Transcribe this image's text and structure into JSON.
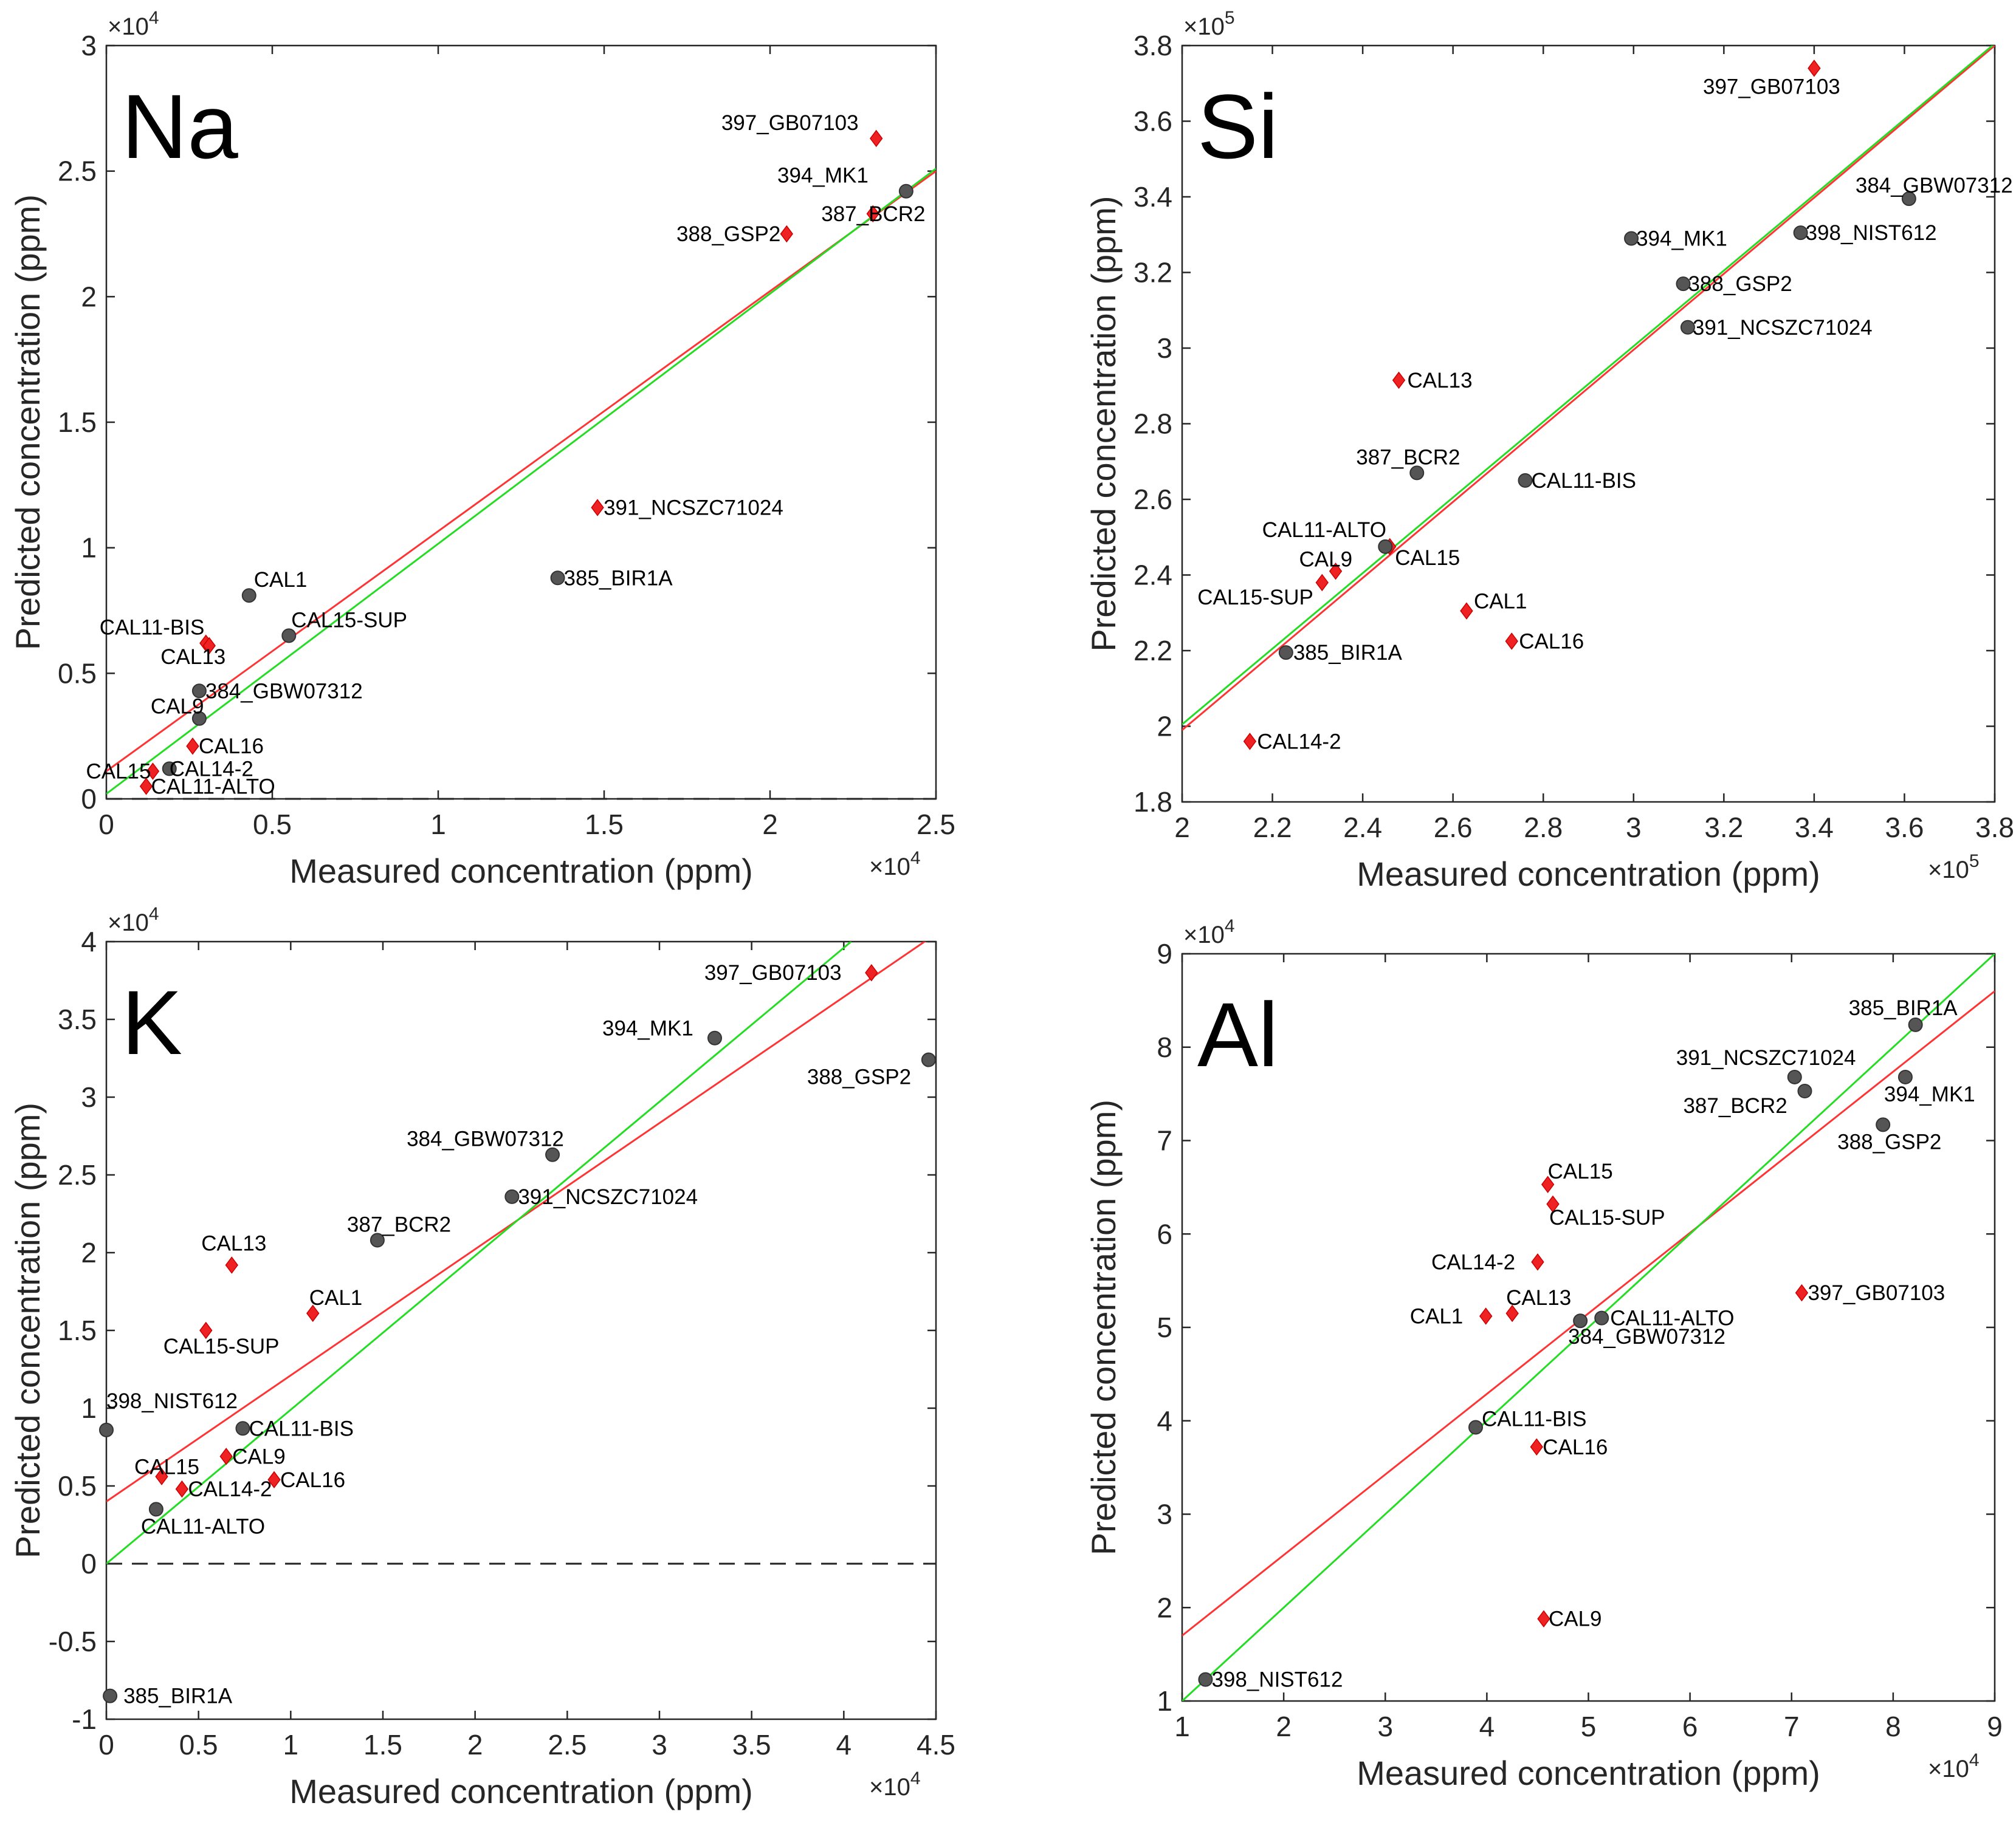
{
  "chart_data": [
    {
      "type": "scatter",
      "title": "Na",
      "xlabel": "Measured concentration (ppm)",
      "ylabel": "Predicted concentration (ppm)",
      "xlim": [
        0,
        25000
      ],
      "ylim": [
        0,
        30000
      ],
      "x_ticks": [
        0,
        0.5,
        1,
        1.5,
        2,
        2.5
      ],
      "y_ticks": [
        0,
        0.5,
        1,
        1.5,
        2,
        2.5,
        3
      ],
      "x_multiplier": "×10",
      "x_multiplier_exp": "4",
      "y_multiplier": "×10",
      "y_multiplier_exp": "4",
      "grid": false,
      "zero_line": true,
      "points": [
        {
          "label": "397_GB07103",
          "x": 23200,
          "y": 26300,
          "marker": "diamond"
        },
        {
          "label": "394_MK1",
          "x": 24100,
          "y": 24200,
          "marker": "circle"
        },
        {
          "label": "388_GSP2",
          "x": 20500,
          "y": 22500,
          "marker": "diamond"
        },
        {
          "label": "387_BCR2",
          "x": 23100,
          "y": 23300,
          "marker": "diamond"
        },
        {
          "label": "391_NCSZC71024",
          "x": 14800,
          "y": 11600,
          "marker": "diamond"
        },
        {
          "label": "385_BIR1A",
          "x": 13600,
          "y": 8800,
          "marker": "circle"
        },
        {
          "label": "CAL1",
          "x": 4300,
          "y": 8100,
          "marker": "circle"
        },
        {
          "label": "CAL11-BIS",
          "x": 3000,
          "y": 6200,
          "marker": "diamond"
        },
        {
          "label": "CAL15-SUP",
          "x": 5500,
          "y": 6500,
          "marker": "circle"
        },
        {
          "label": "CAL13",
          "x": 3100,
          "y": 6100,
          "marker": "diamond"
        },
        {
          "label": "384_GBW07312",
          "x": 2800,
          "y": 4300,
          "marker": "circle"
        },
        {
          "label": "CAL9",
          "x": 2800,
          "y": 3200,
          "marker": "circle"
        },
        {
          "label": "CAL16",
          "x": 2600,
          "y": 2100,
          "marker": "diamond"
        },
        {
          "label": "CAL15",
          "x": 1400,
          "y": 1100,
          "marker": "diamond"
        },
        {
          "label": "CAL14-2",
          "x": 1900,
          "y": 1200,
          "marker": "circle"
        },
        {
          "label": "CAL11-ALTO",
          "x": 1200,
          "y": 500,
          "marker": "diamond"
        }
      ],
      "lines": [
        {
          "color": "#ff3333",
          "x": [
            0,
            25000
          ],
          "y": [
            1100,
            25000
          ]
        },
        {
          "color": "#22dd22",
          "x": [
            0,
            25000
          ],
          "y": [
            200,
            25100
          ]
        }
      ]
    },
    {
      "type": "scatter",
      "title": "Si",
      "xlabel": "Measured concentration (ppm)",
      "ylabel": "Predicted concentration (ppm)",
      "xlim": [
        200000,
        380000
      ],
      "ylim": [
        180000,
        380000
      ],
      "x_ticks": [
        2,
        2.2,
        2.4,
        2.6,
        2.8,
        3,
        3.2,
        3.4,
        3.6,
        3.8
      ],
      "y_ticks": [
        1.8,
        2,
        2.2,
        2.4,
        2.6,
        2.8,
        3,
        3.2,
        3.4,
        3.6,
        3.8
      ],
      "x_multiplier": "×10",
      "x_multiplier_exp": "5",
      "y_multiplier": "×10",
      "y_multiplier_exp": "5",
      "grid": false,
      "zero_line": false,
      "points": [
        {
          "label": "397_GB07103",
          "x": 340000,
          "y": 374000,
          "marker": "diamond"
        },
        {
          "label": "384_GBW07312",
          "x": 361000,
          "y": 339500,
          "marker": "circle"
        },
        {
          "label": "398_NIST612",
          "x": 337000,
          "y": 330500,
          "marker": "circle"
        },
        {
          "label": "394_MK1",
          "x": 299500,
          "y": 329000,
          "marker": "circle"
        },
        {
          "label": "388_GSP2",
          "x": 311000,
          "y": 317000,
          "marker": "circle"
        },
        {
          "label": "391_NCSZC71024",
          "x": 312000,
          "y": 305500,
          "marker": "circle"
        },
        {
          "label": "CAL13",
          "x": 248000,
          "y": 291500,
          "marker": "diamond"
        },
        {
          "label": "387_BCR2",
          "x": 252000,
          "y": 267000,
          "marker": "circle"
        },
        {
          "label": "CAL11-BIS",
          "x": 276000,
          "y": 265000,
          "marker": "circle"
        },
        {
          "label": "CAL11-ALTO",
          "x": 246000,
          "y": 247500,
          "marker": "diamond"
        },
        {
          "label": "CAL15",
          "x": 245000,
          "y": 247500,
          "marker": "circle"
        },
        {
          "label": "CAL9",
          "x": 234000,
          "y": 241000,
          "marker": "diamond"
        },
        {
          "label": "CAL15-SUP",
          "x": 231000,
          "y": 238000,
          "marker": "diamond"
        },
        {
          "label": "CAL1",
          "x": 263000,
          "y": 230500,
          "marker": "diamond"
        },
        {
          "label": "CAL16",
          "x": 273000,
          "y": 222500,
          "marker": "diamond"
        },
        {
          "label": "385_BIR1A",
          "x": 223000,
          "y": 219500,
          "marker": "circle"
        },
        {
          "label": "CAL14-2",
          "x": 215000,
          "y": 196000,
          "marker": "diamond"
        }
      ],
      "lines": [
        {
          "color": "#ff3333",
          "x": [
            200000,
            380000
          ],
          "y": [
            199000,
            380000
          ]
        },
        {
          "color": "#22dd22",
          "x": [
            200000,
            380000
          ],
          "y": [
            200500,
            380500
          ]
        }
      ]
    },
    {
      "type": "scatter",
      "title": "K",
      "xlabel": "Measured concentration (ppm)",
      "ylabel": "Predicted concentration (ppm)",
      "xlim": [
        0,
        45000
      ],
      "ylim": [
        -10000,
        40000
      ],
      "x_ticks": [
        0,
        0.5,
        1,
        1.5,
        2,
        2.5,
        3,
        3.5,
        4,
        4.5
      ],
      "y_ticks": [
        -1,
        -0.5,
        0,
        0.5,
        1,
        1.5,
        2,
        2.5,
        3,
        3.5,
        4
      ],
      "x_multiplier": "×10",
      "x_multiplier_exp": "4",
      "y_multiplier": "×10",
      "y_multiplier_exp": "4",
      "grid": false,
      "zero_line": true,
      "points": [
        {
          "label": "397_GB07103",
          "x": 41500,
          "y": 38000,
          "marker": "diamond"
        },
        {
          "label": "394_MK1",
          "x": 33000,
          "y": 33800,
          "marker": "circle"
        },
        {
          "label": "388_GSP2",
          "x": 44600,
          "y": 32400,
          "marker": "circle"
        },
        {
          "label": "384_GBW07312",
          "x": 24200,
          "y": 26300,
          "marker": "circle"
        },
        {
          "label": "391_NCSZC71024",
          "x": 22000,
          "y": 23600,
          "marker": "circle"
        },
        {
          "label": "387_BCR2",
          "x": 14700,
          "y": 20800,
          "marker": "circle"
        },
        {
          "label": "CAL13",
          "x": 6800,
          "y": 19200,
          "marker": "diamond"
        },
        {
          "label": "CAL1",
          "x": 11200,
          "y": 16100,
          "marker": "diamond"
        },
        {
          "label": "CAL15-SUP",
          "x": 5400,
          "y": 15000,
          "marker": "diamond"
        },
        {
          "label": "398_NIST612",
          "x": 0,
          "y": 8600,
          "marker": "circle"
        },
        {
          "label": "CAL11-BIS",
          "x": 7400,
          "y": 8700,
          "marker": "circle"
        },
        {
          "label": "CAL15",
          "x": 3000,
          "y": 5600,
          "marker": "diamond"
        },
        {
          "label": "CAL9",
          "x": 6500,
          "y": 6900,
          "marker": "diamond"
        },
        {
          "label": "CAL14-2",
          "x": 4100,
          "y": 4800,
          "marker": "diamond"
        },
        {
          "label": "CAL16",
          "x": 9100,
          "y": 5400,
          "marker": "diamond"
        },
        {
          "label": "CAL11-ALTO",
          "x": 2700,
          "y": 3500,
          "marker": "circle"
        },
        {
          "label": "385_BIR1A",
          "x": 200,
          "y": -8500,
          "marker": "circle"
        }
      ],
      "lines": [
        {
          "color": "#ff3333",
          "x": [
            0,
            45000
          ],
          "y": [
            4000,
            40500
          ]
        },
        {
          "color": "#22dd22",
          "x": [
            0,
            40400
          ],
          "y": [
            0,
            40000
          ]
        }
      ]
    },
    {
      "type": "scatter",
      "title": "Al",
      "xlabel": "Measured concentration (ppm)",
      "ylabel": "Predicted concentration (ppm)",
      "xlim": [
        10000,
        90000
      ],
      "ylim": [
        10000,
        90000
      ],
      "x_ticks": [
        1,
        2,
        3,
        4,
        5,
        6,
        7,
        8,
        9
      ],
      "y_ticks": [
        1,
        2,
        3,
        4,
        5,
        6,
        7,
        8,
        9
      ],
      "x_multiplier": "×10",
      "x_multiplier_exp": "4",
      "y_multiplier": "×10",
      "y_multiplier_exp": "4",
      "grid": false,
      "zero_line": false,
      "points": [
        {
          "label": "385_BIR1A",
          "x": 82200,
          "y": 82400,
          "marker": "circle"
        },
        {
          "label": "391_NCSZC71024",
          "x": 70300,
          "y": 76800,
          "marker": "circle"
        },
        {
          "label": "387_BCR2",
          "x": 71300,
          "y": 75300,
          "marker": "circle"
        },
        {
          "label": "394_MK1",
          "x": 81200,
          "y": 76800,
          "marker": "circle"
        },
        {
          "label": "388_GSP2",
          "x": 79000,
          "y": 71700,
          "marker": "circle"
        },
        {
          "label": "CAL15",
          "x": 46000,
          "y": 65300,
          "marker": "diamond"
        },
        {
          "label": "CAL15-SUP",
          "x": 46500,
          "y": 63200,
          "marker": "diamond"
        },
        {
          "label": "CAL14-2",
          "x": 45000,
          "y": 57000,
          "marker": "diamond"
        },
        {
          "label": "397_GB07103",
          "x": 71000,
          "y": 53700,
          "marker": "diamond"
        },
        {
          "label": "CAL13",
          "x": 42500,
          "y": 51500,
          "marker": "diamond"
        },
        {
          "label": "CAL1",
          "x": 39900,
          "y": 51200,
          "marker": "diamond"
        },
        {
          "label": "CAL11-ALTO",
          "x": 51300,
          "y": 51000,
          "marker": "circle"
        },
        {
          "label": "384_GBW07312",
          "x": 49200,
          "y": 50700,
          "marker": "circle"
        },
        {
          "label": "CAL11-BIS",
          "x": 38900,
          "y": 39300,
          "marker": "circle"
        },
        {
          "label": "CAL16",
          "x": 44900,
          "y": 37200,
          "marker": "diamond"
        },
        {
          "label": "CAL9",
          "x": 45600,
          "y": 18800,
          "marker": "diamond"
        },
        {
          "label": "398_NIST612",
          "x": 12300,
          "y": 12300,
          "marker": "circle"
        }
      ],
      "lines": [
        {
          "color": "#ff3333",
          "x": [
            10000,
            90000
          ],
          "y": [
            17000,
            86000
          ]
        },
        {
          "color": "#22dd22",
          "x": [
            10000,
            90000
          ],
          "y": [
            10000,
            90000
          ]
        }
      ]
    }
  ]
}
